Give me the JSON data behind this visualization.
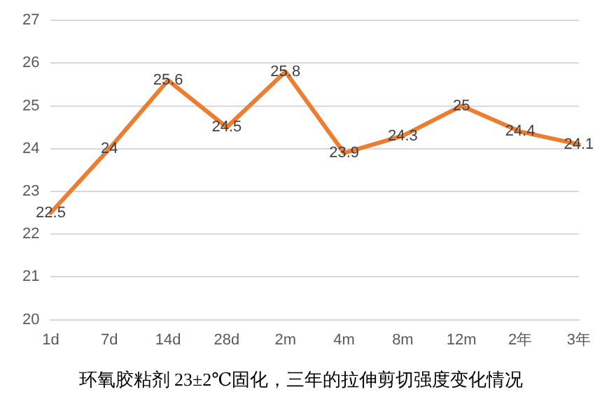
{
  "chart_data": {
    "type": "line",
    "title": "环氧胶粘剂 23±2℃固化，三年的拉伸剪切强度变化情况",
    "categories": [
      "1d",
      "7d",
      "14d",
      "28d",
      "2m",
      "4m",
      "8m",
      "12m",
      "2年",
      "3年"
    ],
    "series": [
      {
        "color": "#ed7d31",
        "values": [
          22.5,
          24,
          25.6,
          24.5,
          25.8,
          23.9,
          24.3,
          25,
          24.4,
          24.1
        ]
      }
    ],
    "ylim": [
      20,
      27
    ],
    "yticks": [
      20,
      21,
      22,
      23,
      24,
      25,
      26,
      27
    ],
    "grid": "y",
    "data_labels": true,
    "marker": "none",
    "line_style": "solid",
    "legend": false
  }
}
